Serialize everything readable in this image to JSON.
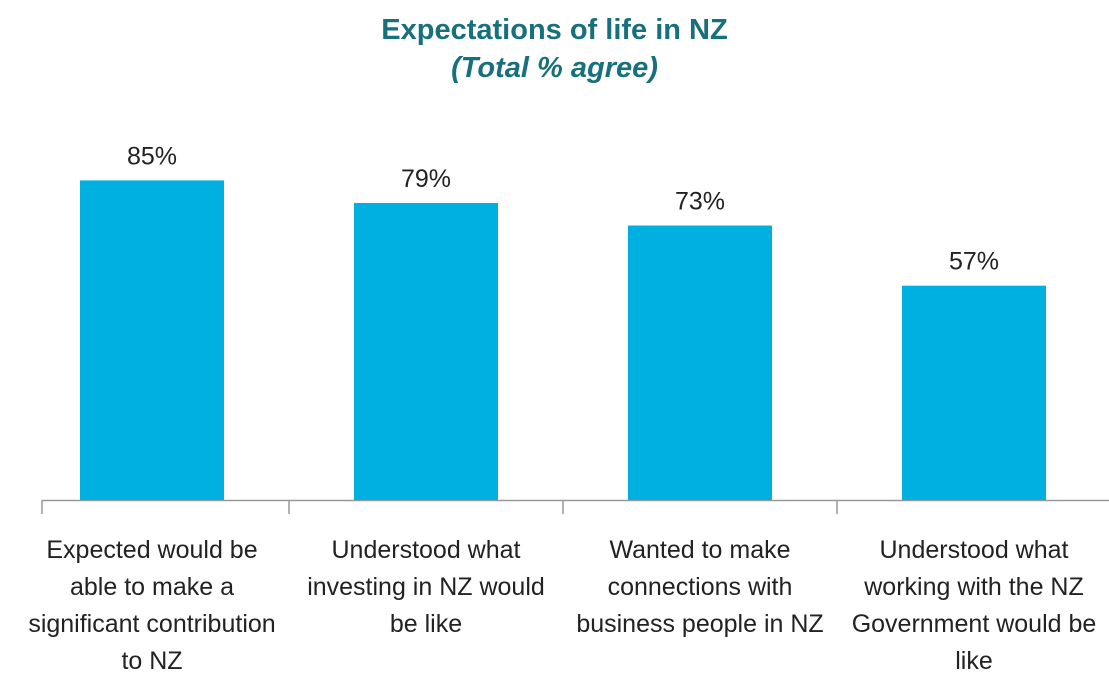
{
  "chart_data": {
    "type": "bar",
    "title": "Expectations of life in NZ",
    "subtitle": "(Total % agree)",
    "categories": [
      "Expected would be able to make a significant contribution to NZ",
      "Understood what investing in NZ would be like",
      "Wanted to make connections with business people in NZ",
      "Understood what working with the NZ Government would be like"
    ],
    "values": [
      85,
      79,
      73,
      57
    ],
    "value_labels": [
      "85%",
      "79%",
      "73%",
      "57%"
    ],
    "color": "#00b0e0",
    "ylim": [
      0,
      100
    ],
    "grid": false
  }
}
